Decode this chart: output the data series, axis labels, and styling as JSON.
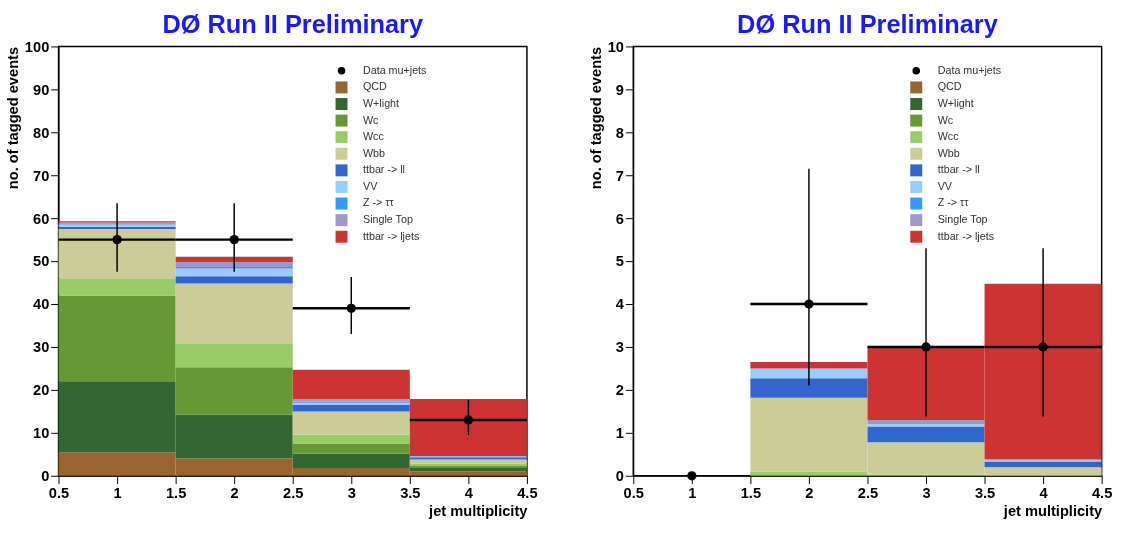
{
  "chart_data": [
    {
      "type": "bar",
      "stacked": true,
      "title": "DØ Run II Preliminary",
      "xlabel": "jet multiplicity",
      "ylabel": "no. of tagged events",
      "x": [
        1,
        2,
        3,
        4
      ],
      "xlim": [
        0.5,
        4.5
      ],
      "xticks": [
        0.5,
        1,
        1.5,
        2,
        2.5,
        3,
        3.5,
        4,
        4.5
      ],
      "ylim": [
        0,
        100
      ],
      "yticks": [
        0,
        10,
        20,
        30,
        40,
        50,
        60,
        70,
        80,
        90,
        100
      ],
      "legend": "top right",
      "grid": false,
      "series": [
        {
          "name": "QCD",
          "color": "#9a6431",
          "values": [
            5.5,
            4,
            1.8,
            1
          ]
        },
        {
          "name": "W+light",
          "color": "#336633",
          "values": [
            16.5,
            10.3,
            3.4,
            0.8
          ]
        },
        {
          "name": "Wc",
          "color": "#669933",
          "values": [
            20,
            11,
            2.3,
            0.5
          ]
        },
        {
          "name": "Wcc",
          "color": "#99cc66",
          "values": [
            4,
            5.4,
            2.1,
            0.5
          ]
        },
        {
          "name": "Wbb",
          "color": "#cccc99",
          "values": [
            11.5,
            14.1,
            5.4,
            1
          ]
        },
        {
          "name": "ttbar -> ll",
          "color": "#3366cc",
          "values": [
            0.5,
            1.7,
            1.5,
            0.5
          ]
        },
        {
          "name": "VV",
          "color": "#99ccff",
          "values": [
            0.5,
            1.8,
            0.5,
            0.2
          ]
        },
        {
          "name": "Z -> ττ",
          "color": "#3399ff",
          "values": [
            0.3,
            0.3,
            0.3,
            0.1
          ]
        },
        {
          "name": "Single Top",
          "color": "#9999cc",
          "values": [
            0.2,
            1.2,
            0.5,
            null
          ]
        },
        {
          "name": "ttbar -> ljets",
          "color": "#cc3333",
          "values": [
            0.3,
            1.2,
            6.9,
            13.3
          ]
        },
        {
          "name": "Data mu+jets",
          "type": "scatter",
          "marker": "circle",
          "color": "#000000",
          "values": [
            55,
            55,
            39,
            13
          ],
          "errors": [
            [
              47.5,
              63.5
            ],
            [
              47.5,
              63.5
            ],
            [
              33,
              46.3
            ],
            [
              9.5,
              17.7
            ]
          ],
          "xerrors": [
            0.5,
            0.5,
            0.5,
            0.5
          ]
        }
      ]
    },
    {
      "type": "bar",
      "stacked": true,
      "title": "DØ Run II Preliminary",
      "xlabel": "jet multiplicity",
      "ylabel": "no. of tagged events",
      "x": [
        1,
        2,
        3,
        4
      ],
      "xlim": [
        0.5,
        4.5
      ],
      "xticks": [
        0.5,
        1,
        1.5,
        2,
        2.5,
        3,
        3.5,
        4,
        4.5
      ],
      "ylim": [
        0,
        10
      ],
      "yticks": [
        0,
        1,
        2,
        3,
        4,
        5,
        6,
        7,
        8,
        9,
        10
      ],
      "legend": "top right",
      "grid": false,
      "series": [
        {
          "name": "QCD",
          "color": "#9a6431",
          "values": [
            0,
            0,
            0,
            0
          ]
        },
        {
          "name": "W+light",
          "color": "#336633",
          "values": [
            0,
            0,
            0,
            0
          ]
        },
        {
          "name": "Wc",
          "color": "#669933",
          "values": [
            0,
            0,
            0,
            0
          ]
        },
        {
          "name": "Wcc",
          "color": "#99cc66",
          "values": [
            0,
            0.1,
            0.03,
            0
          ]
        },
        {
          "name": "Wbb",
          "color": "#cccc99",
          "values": [
            0,
            1.72,
            0.75,
            0.2
          ]
        },
        {
          "name": "ttbar -> ll",
          "color": "#3366cc",
          "values": [
            0,
            0.45,
            0.37,
            0.13
          ]
        },
        {
          "name": "VV",
          "color": "#99ccff",
          "values": [
            0,
            0.23,
            0.05,
            0.05
          ]
        },
        {
          "name": "Z -> ττ",
          "color": "#3399ff",
          "values": [
            0,
            0,
            0,
            0
          ]
        },
        {
          "name": "Single Top",
          "color": "#9999cc",
          "values": [
            0,
            0,
            0.1,
            0
          ]
        },
        {
          "name": "ttbar -> ljets",
          "color": "#cc3333",
          "values": [
            0,
            0.15,
            1.7,
            4.09
          ]
        },
        {
          "name": "Data mu+jets",
          "type": "scatter",
          "marker": "circle",
          "color": "#000000",
          "values": [
            0,
            4,
            3,
            3
          ],
          "errors": [
            null,
            [
              2.1,
              7.15
            ],
            [
              1.38,
              5.3
            ],
            [
              1.38,
              5.3
            ]
          ],
          "xerrors": [
            null,
            0.5,
            0.5,
            0.5
          ]
        }
      ]
    }
  ]
}
